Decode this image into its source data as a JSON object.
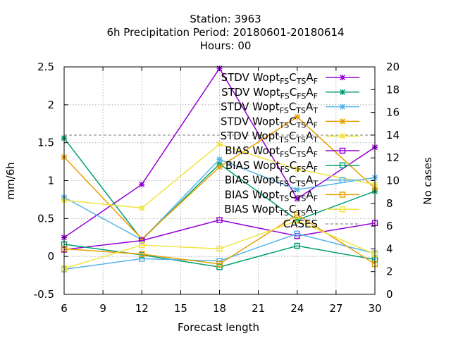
{
  "chart_data": {
    "type": "line",
    "title_lines": [
      "Station:     3963",
      "6h Precipitation   Period: 20180601-20180614",
      "Hours:  00"
    ],
    "xlabel": "Forecast length",
    "ylabel": "mm/6h",
    "y2label": "No cases",
    "xlim": [
      6,
      30
    ],
    "ylim": [
      -0.5,
      2.5
    ],
    "y2lim": [
      0,
      20
    ],
    "xticks": [
      "6",
      "9",
      "12",
      "15",
      "18",
      "21",
      "24",
      "27",
      "30"
    ],
    "yticks": [
      "-0.5",
      "0",
      "0.5",
      "1",
      "1.5",
      "2",
      "2.5"
    ],
    "y2ticks": [
      "0",
      "2",
      "4",
      "6",
      "8",
      "10",
      "12",
      "14",
      "16",
      "18",
      "20"
    ],
    "grid": true,
    "legend_position": "top-right",
    "x": [
      6,
      12,
      18,
      24,
      30
    ],
    "series": [
      {
        "name_parts": [
          [
            "STDV Wopt",
            ""
          ],
          [
            "FS",
            "sub"
          ],
          [
            "C",
            ""
          ],
          [
            "TS",
            "sub"
          ],
          [
            "A",
            ""
          ],
          [
            "F",
            "sub"
          ]
        ],
        "color": "#9400d3",
        "marker": "x",
        "values": [
          0.25,
          0.95,
          2.48,
          0.76,
          1.44
        ]
      },
      {
        "name_parts": [
          [
            "STDV Wopt",
            ""
          ],
          [
            "FS",
            "sub"
          ],
          [
            "C",
            ""
          ],
          [
            "FS",
            "sub"
          ],
          [
            "A",
            ""
          ],
          [
            "F",
            "sub"
          ]
        ],
        "color": "#009e73",
        "marker": "x",
        "values": [
          1.56,
          0.22,
          1.22,
          0.48,
          0.86
        ]
      },
      {
        "name_parts": [
          [
            "STDV Wopt",
            ""
          ],
          [
            "FS",
            "sub"
          ],
          [
            "C",
            ""
          ],
          [
            "TS",
            "sub"
          ],
          [
            "A",
            ""
          ],
          [
            "T",
            "sub"
          ]
        ],
        "color": "#56b4e9",
        "marker": "x",
        "values": [
          0.78,
          0.22,
          1.28,
          0.88,
          1.04
        ]
      },
      {
        "name_parts": [
          [
            "STDV Wopt",
            ""
          ],
          [
            "TS",
            "sub"
          ],
          [
            "C",
            ""
          ],
          [
            "TS",
            "sub"
          ],
          [
            "A",
            ""
          ],
          [
            "F",
            "sub"
          ]
        ],
        "color": "#e69f00",
        "marker": "x",
        "values": [
          1.31,
          0.23,
          1.18,
          1.84,
          0.9
        ]
      },
      {
        "name_parts": [
          [
            "STDV Wopt",
            ""
          ],
          [
            "TS",
            "sub"
          ],
          [
            "C",
            ""
          ],
          [
            "TS",
            "sub"
          ],
          [
            "A",
            ""
          ],
          [
            "T",
            "sub"
          ]
        ],
        "color": "#f0e442",
        "marker": "x",
        "values": [
          0.74,
          0.64,
          1.48,
          1.15,
          0.95
        ]
      },
      {
        "name_parts": [
          [
            "BIAS Wopt",
            ""
          ],
          [
            "FS",
            "sub"
          ],
          [
            "C",
            ""
          ],
          [
            "TS",
            "sub"
          ],
          [
            "A",
            ""
          ],
          [
            "F",
            "sub"
          ]
        ],
        "color": "#9400d3",
        "marker": "square",
        "values": [
          0.09,
          0.21,
          0.48,
          0.27,
          0.44
        ]
      },
      {
        "name_parts": [
          [
            "BIAS Wopt",
            ""
          ],
          [
            "FS",
            "sub"
          ],
          [
            "C",
            ""
          ],
          [
            "FS",
            "sub"
          ],
          [
            "A",
            ""
          ],
          [
            "F",
            "sub"
          ]
        ],
        "color": "#009e73",
        "marker": "square",
        "values": [
          0.16,
          0.02,
          -0.14,
          0.14,
          -0.04
        ]
      },
      {
        "name_parts": [
          [
            "BIAS Wopt",
            ""
          ],
          [
            "FS",
            "sub"
          ],
          [
            "C",
            ""
          ],
          [
            "TS",
            "sub"
          ],
          [
            "A",
            ""
          ],
          [
            "T",
            "sub"
          ]
        ],
        "color": "#56b4e9",
        "marker": "square",
        "values": [
          -0.17,
          -0.03,
          -0.06,
          0.3,
          0.04
        ]
      },
      {
        "name_parts": [
          [
            "BIAS Wopt",
            ""
          ],
          [
            "TS",
            "sub"
          ],
          [
            "C",
            ""
          ],
          [
            "TS",
            "sub"
          ],
          [
            "A",
            ""
          ],
          [
            "F",
            "sub"
          ]
        ],
        "color": "#e69f00",
        "marker": "square",
        "values": [
          0.1,
          0.03,
          -0.1,
          0.55,
          -0.1
        ]
      },
      {
        "name_parts": [
          [
            "BIAS Wopt",
            ""
          ],
          [
            "TS",
            "sub"
          ],
          [
            "C",
            ""
          ],
          [
            "TS",
            "sub"
          ],
          [
            "A",
            ""
          ],
          [
            "T",
            "sub"
          ]
        ],
        "color": "#f0e442",
        "marker": "square",
        "values": [
          -0.16,
          0.15,
          0.1,
          0.47,
          0.03
        ]
      }
    ],
    "cases": {
      "name": "CASES",
      "color": "#a0a0a0",
      "value": 14
    }
  }
}
